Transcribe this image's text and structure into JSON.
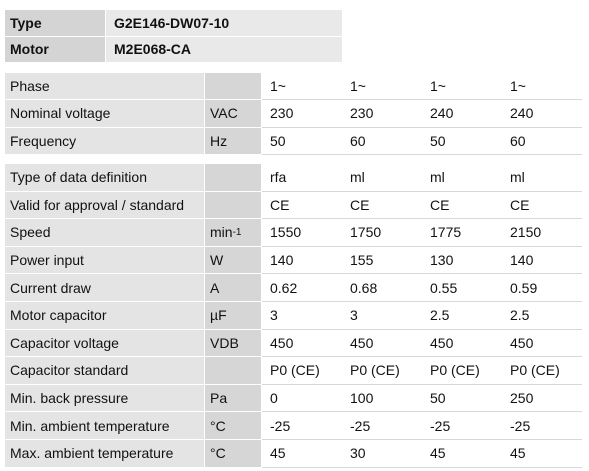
{
  "header": {
    "rows": [
      {
        "key": "Type",
        "value": "G2E146-DW07-10"
      },
      {
        "key": "Motor",
        "value": "M2E068-CA"
      }
    ]
  },
  "tables": [
    {
      "rows": [
        {
          "label": "Phase",
          "unit": "",
          "values": [
            "1~",
            "1~",
            "1~",
            "1~"
          ]
        },
        {
          "label": "Nominal voltage",
          "unit": "VAC",
          "values": [
            "230",
            "230",
            "240",
            "240"
          ]
        },
        {
          "label": "Frequency",
          "unit": "Hz",
          "values": [
            "50",
            "60",
            "50",
            "60"
          ]
        }
      ]
    },
    {
      "rows": [
        {
          "label": "Type of data definition",
          "unit": "",
          "values": [
            "rfa",
            "ml",
            "ml",
            "ml"
          ]
        },
        {
          "label": "Valid for approval / standard",
          "unit": "",
          "values": [
            "CE",
            "CE",
            "CE",
            "CE"
          ]
        },
        {
          "label": "Speed",
          "unit": "min",
          "unit_sup": "-1",
          "values": [
            "1550",
            "1750",
            "1775",
            "2150"
          ]
        },
        {
          "label": "Power input",
          "unit": "W",
          "values": [
            "140",
            "155",
            "130",
            "140"
          ]
        },
        {
          "label": "Current draw",
          "unit": "A",
          "values": [
            "0.62",
            "0.68",
            "0.55",
            "0.59"
          ]
        },
        {
          "label": "Motor capacitor",
          "unit": "µF",
          "values": [
            "3",
            "3",
            "2.5",
            "2.5"
          ]
        },
        {
          "label": "Capacitor voltage",
          "unit": "VDB",
          "values": [
            "450",
            "450",
            "450",
            "450"
          ]
        },
        {
          "label": "Capacitor standard",
          "unit": "",
          "values": [
            "P0 (CE)",
            "P0 (CE)",
            "P0 (CE)",
            "P0 (CE)"
          ]
        },
        {
          "label": "Min. back pressure",
          "unit": "Pa",
          "values": [
            "0",
            "100",
            "50",
            "250"
          ]
        },
        {
          "label": "Min. ambient temperature",
          "unit": "°C",
          "values": [
            "-25",
            "-25",
            "-25",
            "-25"
          ]
        },
        {
          "label": "Max. ambient temperature",
          "unit": "°C",
          "values": [
            "45",
            "30",
            "45",
            "45"
          ]
        }
      ]
    }
  ]
}
